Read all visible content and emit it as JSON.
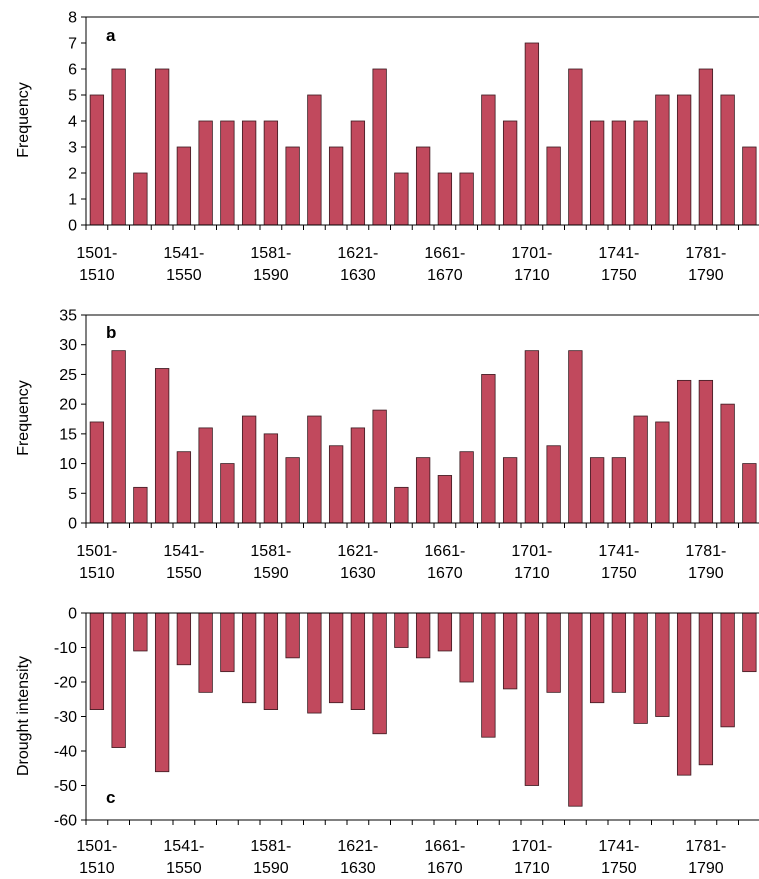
{
  "chart_data": [
    {
      "type": "bar",
      "panel_label": "a",
      "ylabel": "Frequency",
      "ylim": [
        0,
        8
      ],
      "yticks": [
        0,
        1,
        2,
        3,
        4,
        5,
        6,
        7,
        8
      ],
      "x_tick_labels": [
        [
          "1501-",
          "1510"
        ],
        [
          "1541-",
          "1550"
        ],
        [
          "1581-",
          "1590"
        ],
        [
          "1621-",
          "1630"
        ],
        [
          "1661-",
          "1670"
        ],
        [
          "1701-",
          "1710"
        ],
        [
          "1741-",
          "1750"
        ],
        [
          "1781-",
          "1790"
        ]
      ],
      "values": [
        5,
        6,
        2,
        6,
        3,
        4,
        4,
        4,
        4,
        3,
        5,
        3,
        4,
        6,
        2,
        3,
        2,
        2,
        5,
        4,
        7,
        3,
        6,
        4,
        4,
        4,
        5,
        5,
        6,
        5,
        3
      ]
    },
    {
      "type": "bar",
      "panel_label": "b",
      "ylabel": "Frequency",
      "ylim": [
        0,
        35
      ],
      "yticks": [
        0,
        5,
        10,
        15,
        20,
        25,
        30,
        35
      ],
      "x_tick_labels": [
        [
          "1501-",
          "1510"
        ],
        [
          "1541-",
          "1550"
        ],
        [
          "1581-",
          "1590"
        ],
        [
          "1621-",
          "1630"
        ],
        [
          "1661-",
          "1670"
        ],
        [
          "1701-",
          "1710"
        ],
        [
          "1741-",
          "1750"
        ],
        [
          "1781-",
          "1790"
        ]
      ],
      "values": [
        17,
        29,
        6,
        26,
        12,
        16,
        10,
        18,
        15,
        11,
        18,
        13,
        16,
        19,
        6,
        11,
        8,
        12,
        25,
        11,
        29,
        13,
        29,
        11,
        11,
        18,
        17,
        24,
        24,
        20,
        10
      ]
    },
    {
      "type": "bar",
      "panel_label": "c",
      "ylabel": "Drought intensity",
      "ylim": [
        -60,
        0
      ],
      "yticks": [
        0,
        -10,
        -20,
        -30,
        -40,
        -50,
        -60
      ],
      "x_tick_labels": [
        [
          "1501-",
          "1510"
        ],
        [
          "1541-",
          "1550"
        ],
        [
          "1581-",
          "1590"
        ],
        [
          "1621-",
          "1630"
        ],
        [
          "1661-",
          "1670"
        ],
        [
          "1701-",
          "1710"
        ],
        [
          "1741-",
          "1750"
        ],
        [
          "1781-",
          "1790"
        ]
      ],
      "values": [
        -28,
        -39,
        -11,
        -46,
        -15,
        -23,
        -17,
        -26,
        -28,
        -13,
        -29,
        -26,
        -28,
        -35,
        -10,
        -13,
        -11,
        -20,
        -36,
        -22,
        -50,
        -23,
        -56,
        -26,
        -23,
        -32,
        -30,
        -47,
        -44,
        -33,
        -17
      ]
    }
  ]
}
